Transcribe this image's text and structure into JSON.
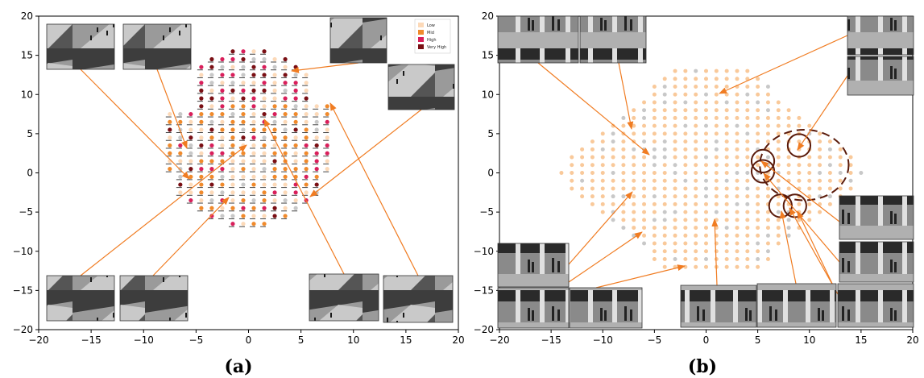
{
  "colors": {
    "low": "#fcd9b8",
    "mid": "#f08a2c",
    "high": "#d91f5b",
    "very_high": "#7a0f14",
    "gray": "#c8c8c8",
    "peach": "#f9c99a",
    "arrow": "#f07c22",
    "circle": "#5a1a0a"
  },
  "chart_data": [
    {
      "type": "scatter",
      "caption": "(a)",
      "xlim": [
        -20,
        20
      ],
      "ylim": [
        -20,
        20
      ],
      "xticks": [
        "−20",
        "−15",
        "−10",
        "−5",
        "0",
        "5",
        "10",
        "15",
        "20"
      ],
      "yticks": [
        "20",
        "15",
        "10",
        "5",
        "0",
        "−5",
        "−10",
        "−15",
        "−20"
      ],
      "legend": {
        "position": "top-right",
        "entries": [
          "Low",
          "Mid",
          "High",
          "Very High"
        ]
      },
      "thumbnails_count": 8
    },
    {
      "type": "scatter",
      "caption": "(b)",
      "xlim": [
        -20,
        20
      ],
      "ylim": [
        -20,
        20
      ],
      "xticks": [
        "−20",
        "−15",
        "−10",
        "−5",
        "0",
        "5",
        "10",
        "15",
        "20"
      ],
      "yticks": [
        "20",
        "15",
        "10",
        "5",
        "0",
        "−5",
        "−10",
        "−15",
        "−20"
      ],
      "highlight_regions": [
        {
          "cx": 9.5,
          "cy": 1,
          "rx": 4.3,
          "ry": 4.5,
          "style": "dashed"
        },
        {
          "cx": 5.5,
          "cy": 1.5,
          "r": 1.1
        },
        {
          "cx": 5.5,
          "cy": 0.2,
          "r": 1.1
        },
        {
          "cx": 9,
          "cy": 3.5,
          "r": 1.1
        },
        {
          "cx": 7.2,
          "cy": -4.2,
          "r": 1.1
        },
        {
          "cx": 8.6,
          "cy": -4.2,
          "r": 1.1
        }
      ],
      "thumbnails_count": 13
    }
  ]
}
